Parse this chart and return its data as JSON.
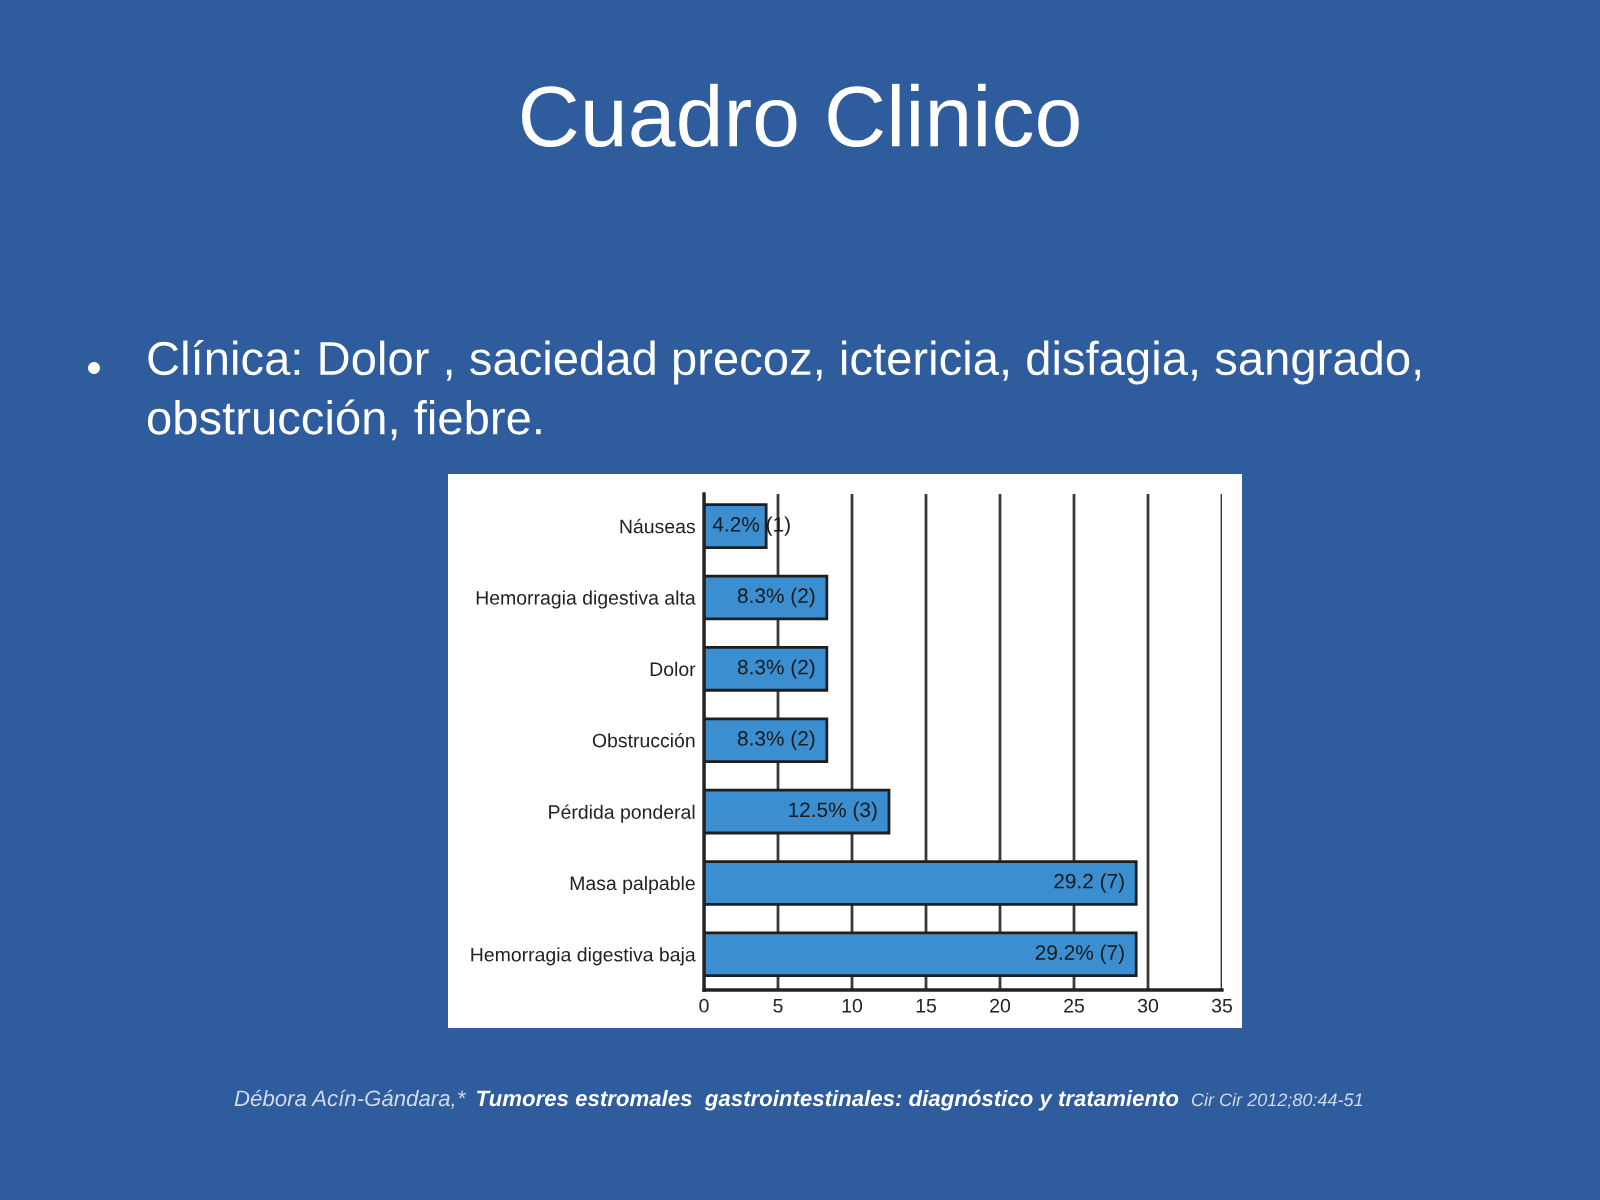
{
  "chart_data": {
    "type": "bar",
    "orientation": "horizontal",
    "title": "Cuadro Clinico",
    "subtitle": "Clínica: Dolor , saciedad precoz, ictericia, disfagia, sangrado, obstrucción, fiebre.",
    "categories": [
      "Náuseas",
      "Hemorragia digestiva alta",
      "Dolor",
      "Obstrucción",
      "Pérdida ponderal",
      "Masa palpable",
      "Hemorragia digestiva baja"
    ],
    "values": [
      4.2,
      8.3,
      8.3,
      8.3,
      12.5,
      29.2,
      29.2
    ],
    "value_labels": [
      "4.2% (1)",
      "8.3% (2)",
      "8.3% (2)",
      "8.3% (2)",
      "12.5% (3)",
      "29.2 (7)",
      "29.2% (7)"
    ],
    "color": "#3b8fd1",
    "xlim": [
      0,
      35
    ],
    "xticks": [
      0,
      5,
      10,
      15,
      20,
      25,
      30,
      35
    ],
    "grid": "x",
    "annotations": [
      "Débora Acín-Gándara,*",
      "Tumores estromales  gastrointestinales: diagnóstico y tratamiento",
      "Cir Cir 2012;80:44-51"
    ]
  }
}
